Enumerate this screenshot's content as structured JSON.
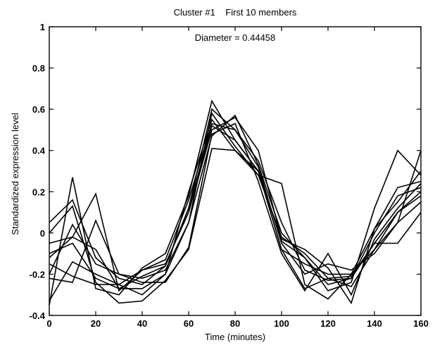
{
  "chart_data": {
    "type": "line",
    "title": "Cluster #1    First 10 members",
    "annotation": "Diameter = 0.44458",
    "xlabel": "Time (minutes)",
    "ylabel": "Standardized expression level",
    "xlim": [
      0,
      160
    ],
    "ylim": [
      -0.4,
      1
    ],
    "xticks": [
      0,
      20,
      40,
      60,
      80,
      100,
      120,
      140,
      160
    ],
    "yticks": [
      -0.4,
      -0.2,
      0,
      0.2,
      0.4,
      0.6,
      0.8,
      1
    ],
    "ytick_labels": [
      "-0.4",
      "-0.2",
      "0",
      "0.2",
      "0.4",
      "0.6",
      "0.8",
      "1"
    ],
    "grid": false,
    "line_color": "#000000",
    "x": [
      0,
      10,
      20,
      30,
      40,
      50,
      60,
      70,
      80,
      90,
      100,
      110,
      120,
      130,
      140,
      150,
      160
    ],
    "series": [
      {
        "values": [
          0.05,
          0.16,
          -0.12,
          -0.22,
          -0.25,
          -0.16,
          0.12,
          0.6,
          0.5,
          0.35,
          0.05,
          -0.18,
          -0.23,
          -0.22,
          -0.05,
          0.1,
          0.2
        ]
      },
      {
        "values": [
          -0.35,
          0.27,
          -0.27,
          -0.3,
          -0.17,
          -0.1,
          0.18,
          0.64,
          0.45,
          0.3,
          -0.08,
          -0.27,
          -0.22,
          -0.26,
          -0.08,
          0.05,
          0.4
        ]
      },
      {
        "values": [
          -0.12,
          -0.02,
          -0.08,
          -0.27,
          -0.27,
          -0.2,
          0.2,
          0.55,
          0.4,
          0.28,
          0.24,
          -0.25,
          -0.32,
          -0.2,
          0.02,
          0.15,
          0.3
        ]
      },
      {
        "values": [
          -0.05,
          -0.02,
          0.19,
          -0.28,
          -0.18,
          -0.15,
          0.1,
          0.5,
          0.56,
          0.4,
          -0.03,
          -0.08,
          -0.17,
          -0.34,
          0.02,
          0.22,
          0.25
        ]
      },
      {
        "values": [
          0.0,
          0.13,
          -0.24,
          -0.34,
          -0.33,
          -0.23,
          -0.08,
          0.41,
          0.4,
          0.3,
          -0.04,
          -0.12,
          -0.28,
          -0.24,
          0.12,
          0.4,
          0.28
        ]
      },
      {
        "values": [
          -0.2,
          0.04,
          -0.15,
          -0.2,
          -0.22,
          -0.18,
          0.05,
          0.47,
          0.57,
          0.33,
          0.0,
          -0.12,
          -0.25,
          -0.22,
          0.0,
          0.18,
          0.22
        ]
      },
      {
        "values": [
          -0.1,
          -0.05,
          -0.22,
          -0.27,
          -0.21,
          -0.16,
          0.12,
          0.52,
          0.45,
          0.3,
          -0.08,
          -0.15,
          -0.2,
          -0.2,
          -0.08,
          0.1,
          0.18
        ]
      },
      {
        "values": [
          -0.33,
          -0.14,
          -0.2,
          -0.25,
          -0.3,
          -0.2,
          0.05,
          0.58,
          0.42,
          0.28,
          -0.02,
          -0.1,
          -0.22,
          -0.21,
          -0.05,
          -0.05,
          0.1
        ]
      },
      {
        "values": [
          -0.15,
          -0.21,
          -0.25,
          -0.25,
          -0.18,
          -0.13,
          0.16,
          0.53,
          0.5,
          0.32,
          -0.05,
          -0.2,
          -0.15,
          -0.18,
          -0.1,
          0.05,
          0.15
        ]
      },
      {
        "values": [
          -0.22,
          -0.24,
          0.06,
          -0.2,
          -0.24,
          -0.24,
          -0.07,
          0.48,
          0.53,
          0.25,
          -0.1,
          -0.28,
          -0.1,
          -0.3,
          -0.03,
          0.12,
          0.24
        ]
      }
    ]
  }
}
